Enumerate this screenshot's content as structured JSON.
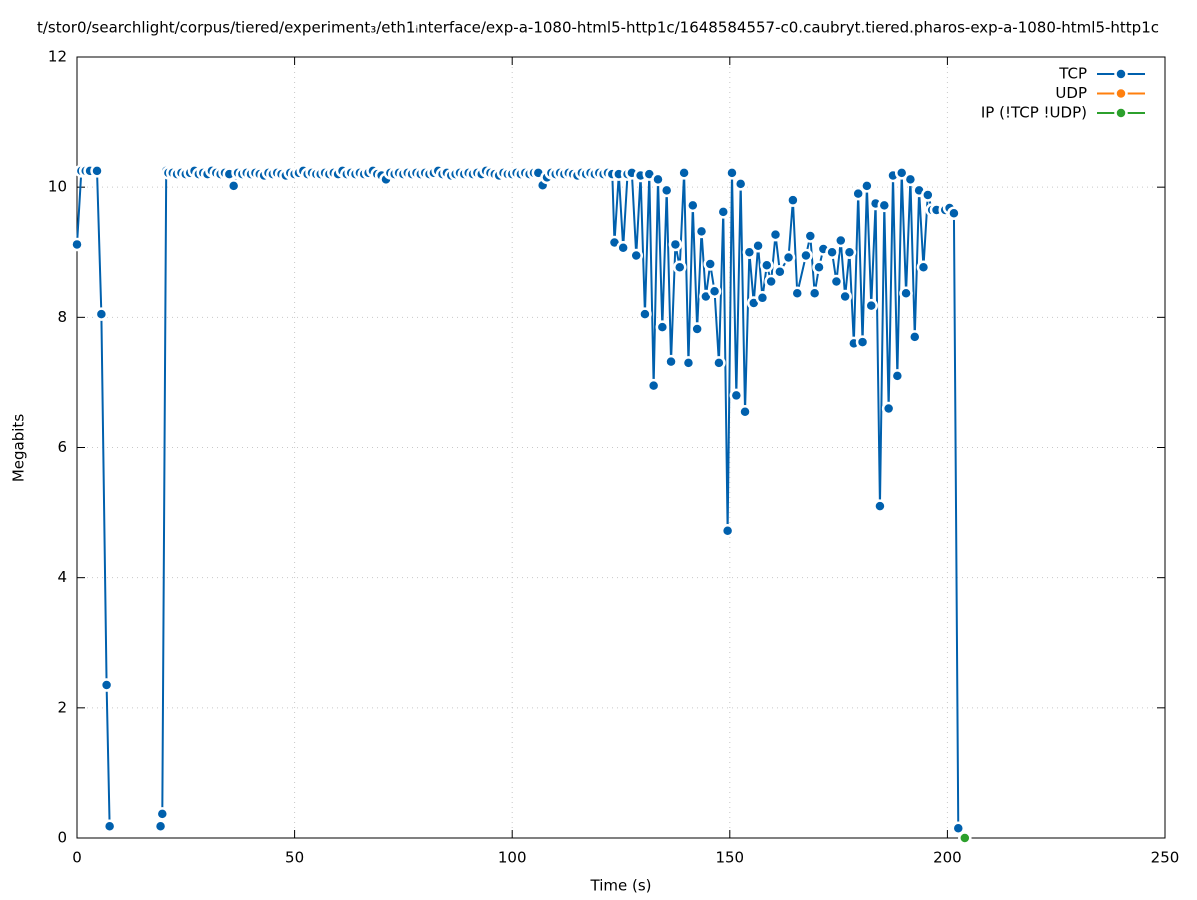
{
  "chart_data": {
    "type": "line",
    "title": "t/stor0/searchlight/corpus/tiered/experiment₃/eth1ᵢnterface/exp-a-1080-html5-http1c/1648584557-c0.caubryt.tiered.pharos-exp-a-1080-html5-http1c",
    "x_label": "Time (s)",
    "y_label": "Megabits",
    "xlim": [
      0,
      250
    ],
    "ylim": [
      0,
      12
    ],
    "xticks": [
      0,
      50,
      100,
      150,
      200,
      250
    ],
    "yticks": [
      0,
      2,
      4,
      6,
      8,
      10,
      12
    ],
    "grid": true,
    "legend": "top-right",
    "series": [
      {
        "name": "TCP",
        "color": "#0060ad",
        "x": [
          0,
          1,
          2,
          3,
          4.6,
          5.6,
          6.8,
          7.5,
          13,
          19.2,
          19.6,
          20.5,
          21,
          22,
          23,
          24,
          25,
          26,
          27,
          28,
          29,
          30,
          31,
          32,
          33,
          34,
          35,
          36,
          37,
          38,
          39,
          40,
          41,
          42,
          43,
          44,
          45,
          46,
          47,
          48,
          49,
          50,
          51,
          52,
          53,
          54,
          55,
          56,
          57,
          58,
          59,
          60,
          61,
          62,
          63,
          64,
          65,
          66,
          67,
          68,
          69,
          70,
          71,
          72,
          73,
          74,
          75,
          76,
          77,
          78,
          79,
          80,
          81,
          82,
          83,
          84,
          85,
          86,
          87,
          88,
          89,
          90,
          91,
          92,
          93,
          94,
          95,
          96,
          97,
          98,
          99,
          100,
          101,
          102,
          103,
          104,
          105,
          106,
          107,
          108,
          109,
          110,
          111,
          112,
          113,
          114,
          115,
          116,
          117,
          118,
          119,
          120,
          121,
          122,
          123,
          123.5,
          124.5,
          125.5,
          126.5,
          127.5,
          128.5,
          129.5,
          130.5,
          131.5,
          132.5,
          133.5,
          134.5,
          135.5,
          136.5,
          137.5,
          138.5,
          139.5,
          140.5,
          141.5,
          142.5,
          143.5,
          144.5,
          145.5,
          146.5,
          147.5,
          148.5,
          149.5,
          150.5,
          151.5,
          152.5,
          153.5,
          154.5,
          155.5,
          156.5,
          157.5,
          158.5,
          159.5,
          160.5,
          161.5,
          163.5,
          164.5,
          165.5,
          167.5,
          168.5,
          169.5,
          170.5,
          171.5,
          173.5,
          174.5,
          175.5,
          176.5,
          177.5,
          178.5,
          179.5,
          180.5,
          181.5,
          182.5,
          183.5,
          184.5,
          185.5,
          186.5,
          187.5,
          188.5,
          189.5,
          190.5,
          191.5,
          192.5,
          193.5,
          194.5,
          195.5,
          196.5,
          197.5,
          199.5,
          200.5,
          201.5,
          202.5
        ],
        "values": [
          9.12,
          10.25,
          10.25,
          10.25,
          10.25,
          8.05,
          2.35,
          0.18,
          null,
          0.18,
          0.37,
          10.25,
          10.22,
          10.22,
          10.2,
          10.22,
          10.2,
          10.22,
          10.25,
          10.2,
          10.22,
          10.2,
          10.25,
          10.22,
          10.2,
          10.22,
          10.2,
          10.02,
          10.22,
          10.2,
          10.22,
          10.2,
          10.22,
          10.2,
          10.18,
          10.22,
          10.2,
          10.22,
          10.2,
          10.18,
          10.22,
          10.2,
          10.22,
          10.25,
          10.2,
          10.22,
          10.2,
          10.2,
          10.22,
          10.2,
          10.22,
          10.2,
          10.25,
          10.2,
          10.22,
          10.2,
          10.22,
          10.2,
          10.22,
          10.25,
          10.2,
          10.18,
          10.12,
          10.22,
          10.2,
          10.22,
          10.2,
          10.22,
          10.2,
          10.22,
          10.2,
          10.22,
          10.2,
          10.22,
          10.25,
          10.2,
          10.22,
          10.18,
          10.2,
          10.22,
          10.2,
          10.22,
          10.2,
          10.22,
          10.2,
          10.25,
          10.22,
          10.2,
          10.18,
          10.22,
          10.2,
          10.2,
          10.22,
          10.2,
          10.22,
          10.2,
          10.22,
          10.22,
          10.03,
          10.15,
          10.22,
          10.2,
          10.22,
          10.2,
          10.22,
          10.2,
          10.18,
          10.22,
          10.2,
          10.22,
          10.2,
          10.22,
          10.2,
          10.22,
          10.2,
          9.15,
          10.2,
          9.07,
          10.2,
          10.22,
          8.95,
          10.18,
          8.05,
          10.2,
          6.95,
          10.12,
          7.85,
          9.95,
          7.32,
          9.12,
          8.77,
          10.22,
          7.3,
          9.72,
          7.82,
          9.32,
          8.32,
          8.82,
          8.4,
          7.3,
          9.62,
          4.72,
          10.22,
          6.8,
          10.05,
          6.55,
          9.0,
          8.22,
          9.1,
          8.3,
          8.8,
          8.55,
          9.27,
          8.7,
          8.92,
          9.8,
          8.37,
          8.95,
          9.25,
          8.37,
          8.77,
          9.05,
          9.0,
          8.55,
          9.18,
          8.32,
          9.0,
          7.6,
          9.9,
          7.62,
          10.02,
          8.18,
          9.75,
          5.1,
          9.72,
          6.6,
          10.18,
          7.1,
          10.22,
          8.37,
          10.12,
          7.7,
          9.95,
          8.77,
          9.88,
          9.65,
          9.65,
          9.65,
          9.68,
          9.6,
          0.15
        ]
      },
      {
        "name": "UDP",
        "color": "#ff7f0e",
        "x": [],
        "values": []
      },
      {
        "name": "IP (!TCP  !UDP)",
        "color": "#2ca02c",
        "x": [
          204
        ],
        "values": [
          0
        ]
      }
    ]
  }
}
